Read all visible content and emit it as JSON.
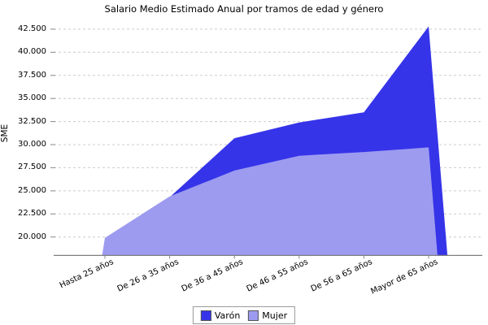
{
  "title": "Salario Medio Estimado Anual por tramos de edad y género",
  "y_axis": {
    "label": "SME",
    "tick_labels": [
      "42.500",
      "40.000",
      "37.500",
      "35.000",
      "32.500",
      "30.000",
      "27.500",
      "25.000",
      "22.500",
      "20.000"
    ],
    "tick_values": [
      42500,
      40000,
      37500,
      35000,
      32500,
      30000,
      27500,
      25000,
      22500,
      20000
    ]
  },
  "x_axis": {
    "categories": [
      "Hasta 25 años",
      "De 26 a 35 años",
      "De 36 a 45 años",
      "De 46 a 55 años",
      "De 56 a 65 años",
      "Mayor de 65 años"
    ]
  },
  "legend": {
    "position": "bottom"
  },
  "colors": {
    "varon": "#3634e9",
    "mujer": "#9d9bef",
    "gridline": "#cccccc",
    "axis": "#7f7f7f",
    "tick": "#888888",
    "background": "#ffffff"
  },
  "chart_data": {
    "type": "area",
    "title": "Salario Medio Estimado Anual por tramos de edad y género",
    "xlabel": "",
    "ylabel": "SME",
    "categories": [
      "Hasta 25 años",
      "De 26 a 35 años",
      "De 36 a 45 años",
      "De 46 a 55 años",
      "De 56 a 65 años",
      "Mayor de 65 años"
    ],
    "series": [
      {
        "name": "Varón",
        "color": "#3634e9",
        "values": [
          19300,
          24300,
          30700,
          32400,
          33500,
          42800
        ]
      },
      {
        "name": "Mujer",
        "color": "#9d9bef",
        "values": [
          19900,
          24400,
          27200,
          28800,
          29200,
          29700
        ]
      }
    ],
    "ylim": [
      18000,
      43200
    ],
    "yticks": [
      20000,
      22500,
      25000,
      27500,
      30000,
      32500,
      35000,
      37500,
      40000,
      42500
    ],
    "grid": "horizontal-dashed",
    "legend_position": "bottom"
  }
}
